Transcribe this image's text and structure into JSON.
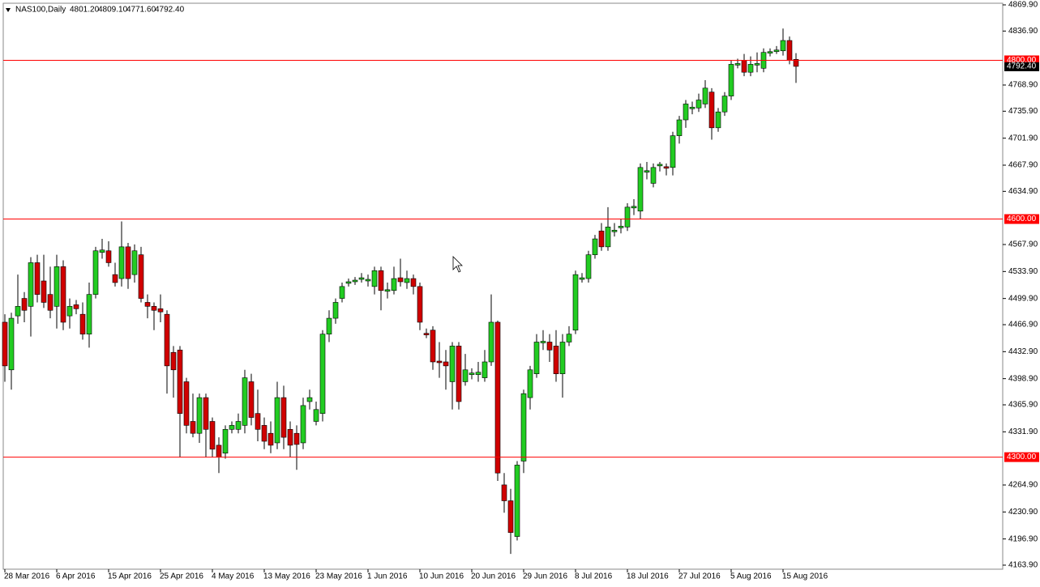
{
  "chart_data": {
    "type": "candlestick",
    "header": {
      "symbol": "NAS100,Daily",
      "ohlc": [
        "4801.20",
        "4809.10",
        "4771.60",
        "4792.40"
      ]
    },
    "categories": [
      "28 Mar 2016",
      null,
      null,
      null,
      null,
      null,
      null,
      null,
      "6 Apr 2016",
      null,
      null,
      null,
      null,
      null,
      null,
      null,
      "15 Apr 2016",
      null,
      null,
      null,
      null,
      null,
      null,
      null,
      "25 Apr 2016",
      null,
      null,
      null,
      null,
      null,
      null,
      null,
      "4 May 2016",
      null,
      null,
      null,
      null,
      null,
      null,
      null,
      "13 May 2016",
      null,
      null,
      null,
      null,
      null,
      null,
      null,
      "23 May 2016",
      null,
      null,
      null,
      null,
      null,
      null,
      null,
      "1 Jun 2016",
      null,
      null,
      null,
      null,
      null,
      null,
      null,
      "10 Jun 2016",
      null,
      null,
      null,
      null,
      null,
      null,
      null,
      "20 Jun 2016",
      null,
      null,
      null,
      null,
      null,
      null,
      null,
      "29 Jun 2016",
      null,
      null,
      null,
      null,
      null,
      null,
      null,
      "8 Jul 2016",
      null,
      null,
      null,
      null,
      null,
      null,
      null,
      "18 Jul 2016",
      null,
      null,
      null,
      null,
      null,
      null,
      null,
      "27 Jul 2016",
      null,
      null,
      null,
      null,
      null,
      null,
      null,
      "5 Aug 2016",
      null,
      null,
      null,
      null,
      null,
      null,
      null,
      "15 Aug 2016",
      null,
      null
    ],
    "open": [
      4470,
      4410,
      4478,
      4500,
      4490,
      4545,
      4522,
      4505,
      4490,
      4540,
      4478,
      4492,
      4480,
      4455,
      4505,
      4558,
      4560,
      4530,
      4525,
      4565,
      4530,
      4555,
      4495,
      4490,
      4487,
      4480,
      4432,
      4435,
      4395,
      4345,
      4330,
      4375,
      4345,
      4315,
      4305,
      4335,
      4335,
      4340,
      4395,
      4355,
      4340,
      4330,
      4318,
      4375,
      4335,
      4330,
      4318,
      4370,
      4345,
      4355,
      4455,
      4475,
      4500,
      4519,
      4521,
      4524,
      4522,
      4515,
      4535,
      4509,
      4510,
      4526,
      4520,
      4525,
      4515,
      4456,
      4460,
      4421,
      4420,
      4395,
      4440,
      4395,
      4404,
      4404,
      4400,
      4420,
      4470,
      4265,
      4245,
      4200,
      4295,
      4375,
      4405,
      4444,
      4445,
      4440,
      4405,
      4445,
      4460,
      4524,
      4525,
      4555,
      4585,
      4565,
      4584,
      4589,
      4590,
      4614,
      4610,
      4659,
      4645,
      4667,
      4666,
      4665,
      4705,
      4725,
      4739,
      4740,
      4745,
      4760,
      4715,
      4735,
      4755,
      4794,
      4800,
      4785,
      4794,
      4790,
      4809,
      4811,
      4812,
      4825,
      4801.2
    ],
    "high": [
      4480,
      4482,
      4530,
      4508,
      4552,
      4555,
      4555,
      4540,
      4555,
      4548,
      4500,
      4498,
      4495,
      4520,
      4565,
      4575,
      4572,
      4545,
      4597,
      4570,
      4568,
      4565,
      4505,
      4495,
      4505,
      4485,
      4440,
      4440,
      4400,
      4380,
      4380,
      4380,
      4350,
      4325,
      4340,
      4345,
      4355,
      4410,
      4405,
      4385,
      4350,
      4345,
      4395,
      4390,
      4345,
      4340,
      4375,
      4385,
      4370,
      4460,
      4485,
      4500,
      4520,
      4525,
      4527,
      4532,
      4530,
      4540,
      4540,
      4520,
      4540,
      4550,
      4535,
      4530,
      4520,
      4462,
      4465,
      4445,
      4435,
      4445,
      4445,
      4430,
      4412,
      4420,
      4435,
      4505,
      4472,
      4280,
      4260,
      4295,
      4385,
      4415,
      4455,
      4460,
      4455,
      4460,
      4455,
      4465,
      4535,
      4532,
      4560,
      4580,
      4595,
      4615,
      4595,
      4600,
      4620,
      4625,
      4670,
      4672,
      4670,
      4672,
      4670,
      4710,
      4730,
      4750,
      4748,
      4758,
      4775,
      4765,
      4740,
      4760,
      4800,
      4802,
      4808,
      4805,
      4810,
      4815,
      4815,
      4818,
      4840,
      4830,
      4809.1
    ],
    "low": [
      4395,
      4385,
      4468,
      4470,
      4452,
      4495,
      4488,
      4475,
      4462,
      4460,
      4462,
      4480,
      4448,
      4438,
      4500,
      4550,
      4540,
      4515,
      4515,
      4512,
      4520,
      4495,
      4475,
      4460,
      4470,
      4380,
      4375,
      4300,
      4330,
      4325,
      4318,
      4300,
      4300,
      4280,
      4298,
      4330,
      4330,
      4330,
      4340,
      4320,
      4310,
      4305,
      4310,
      4310,
      4300,
      4284,
      4310,
      4360,
      4340,
      4345,
      4445,
      4468,
      4495,
      4515,
      4517,
      4520,
      4515,
      4505,
      4485,
      4500,
      4505,
      4515,
      4512,
      4505,
      4460,
      4450,
      4410,
      4400,
      4385,
      4360,
      4360,
      4390,
      4398,
      4395,
      4395,
      4415,
      4270,
      4230,
      4178,
      4195,
      4280,
      4360,
      4400,
      4435,
      4420,
      4395,
      4375,
      4440,
      4455,
      4520,
      4520,
      4550,
      4560,
      4560,
      4578,
      4582,
      4585,
      4605,
      4600,
      4650,
      4640,
      4660,
      4655,
      4655,
      4695,
      4715,
      4732,
      4735,
      4740,
      4700,
      4710,
      4730,
      4750,
      4790,
      4780,
      4780,
      4785,
      4785,
      4805,
      4808,
      4806,
      4795,
      4771.6
    ],
    "close": [
      4415,
      4475,
      4490,
      4485,
      4545,
      4505,
      4495,
      4485,
      4540,
      4470,
      4490,
      4487,
      4455,
      4505,
      4560,
      4561,
      4545,
      4520,
      4565,
      4525,
      4560,
      4500,
      4490,
      4485,
      4483,
      4415,
      4410,
      4355,
      4340,
      4330,
      4375,
      4335,
      4310,
      4300,
      4335,
      4340,
      4345,
      4400,
      4350,
      4335,
      4320,
      4315,
      4375,
      4325,
      4315,
      4316,
      4365,
      4375,
      4360,
      4455,
      4475,
      4495,
      4515,
      4521,
      4523,
      4526,
      4524,
      4535,
      4510,
      4511,
      4525,
      4521,
      4525,
      4515,
      4470,
      4454,
      4420,
      4419,
      4415,
      4440,
      4370,
      4410,
      4406,
      4407,
      4420,
      4470,
      4280,
      4245,
      4205,
      4290,
      4380,
      4410,
      4445,
      4446,
      4435,
      4405,
      4445,
      4455,
      4530,
      4526,
      4555,
      4575,
      4565,
      4590,
      4586,
      4591,
      4615,
      4616,
      4665,
      4661,
      4665,
      4669,
      4664,
      4705,
      4725,
      4745,
      4741,
      4750,
      4765,
      4715,
      4735,
      4755,
      4795,
      4796,
      4785,
      4795,
      4796,
      4810,
      4811,
      4813,
      4825,
      4800,
      4792.4
    ],
    "up_color": "#22cc22",
    "down_color": "#d00000",
    "ylim": [
      4163.9,
      4869.9
    ],
    "yticks": [
      {
        "value": 4869.9,
        "label": "4869.90"
      },
      {
        "value": 4836.9,
        "label": "4836.90"
      },
      {
        "value": 4768.9,
        "label": "4768.90"
      },
      {
        "value": 4735.9,
        "label": "4735.90"
      },
      {
        "value": 4701.9,
        "label": "4701.90"
      },
      {
        "value": 4667.9,
        "label": "4667.90"
      },
      {
        "value": 4634.9,
        "label": "4634.90"
      },
      {
        "value": 4567.9,
        "label": "4567.90"
      },
      {
        "value": 4533.9,
        "label": "4533.90"
      },
      {
        "value": 4499.9,
        "label": "4499.90"
      },
      {
        "value": 4466.9,
        "label": "4466.90"
      },
      {
        "value": 4432.9,
        "label": "4432.90"
      },
      {
        "value": 4398.9,
        "label": "4398.90"
      },
      {
        "value": 4365.9,
        "label": "4365.90"
      },
      {
        "value": 4331.9,
        "label": "4331.90"
      },
      {
        "value": 4264.9,
        "label": "4264.90"
      },
      {
        "value": 4230.9,
        "label": "4230.90"
      },
      {
        "value": 4196.9,
        "label": "4196.90"
      },
      {
        "value": 4163.9,
        "label": "4163.90"
      }
    ],
    "levels": [
      {
        "value": 4800,
        "label": "4800.00"
      },
      {
        "value": 4600,
        "label": "4600.00"
      },
      {
        "value": 4300,
        "label": "4300.00"
      }
    ],
    "level_color": "#ff0000",
    "last_price": {
      "value": 4792.4,
      "label": "4792.40"
    }
  }
}
